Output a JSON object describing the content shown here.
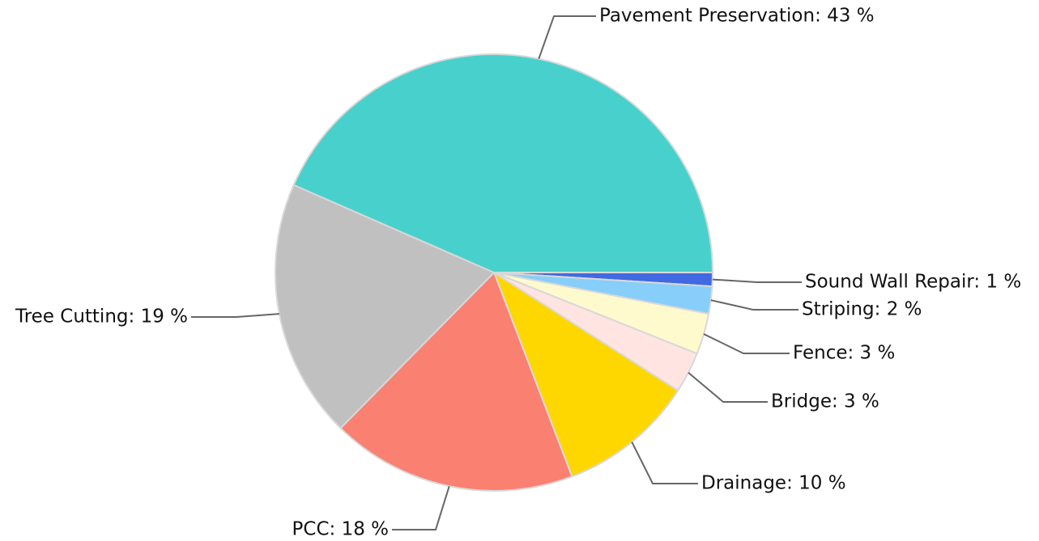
{
  "chart_data": {
    "type": "pie",
    "labels": [
      "Sound Wall Repair: 1 %",
      "Striping: 2 %",
      "Fence: 3 %",
      "Bridge: 3 %",
      "Drainage: 10 %",
      "PCC: 18 %",
      "Tree Cutting: 19 %",
      "Pavement Preservation: 43 %"
    ],
    "values": [
      1,
      2,
      3,
      3,
      10,
      18,
      19,
      43
    ],
    "colors": [
      "#4169e1",
      "#87cefa",
      "#fffacd",
      "#ffe4e1",
      "#ffd700",
      "#fa8072",
      "#c0c0c0",
      "#48d1cc"
    ]
  }
}
